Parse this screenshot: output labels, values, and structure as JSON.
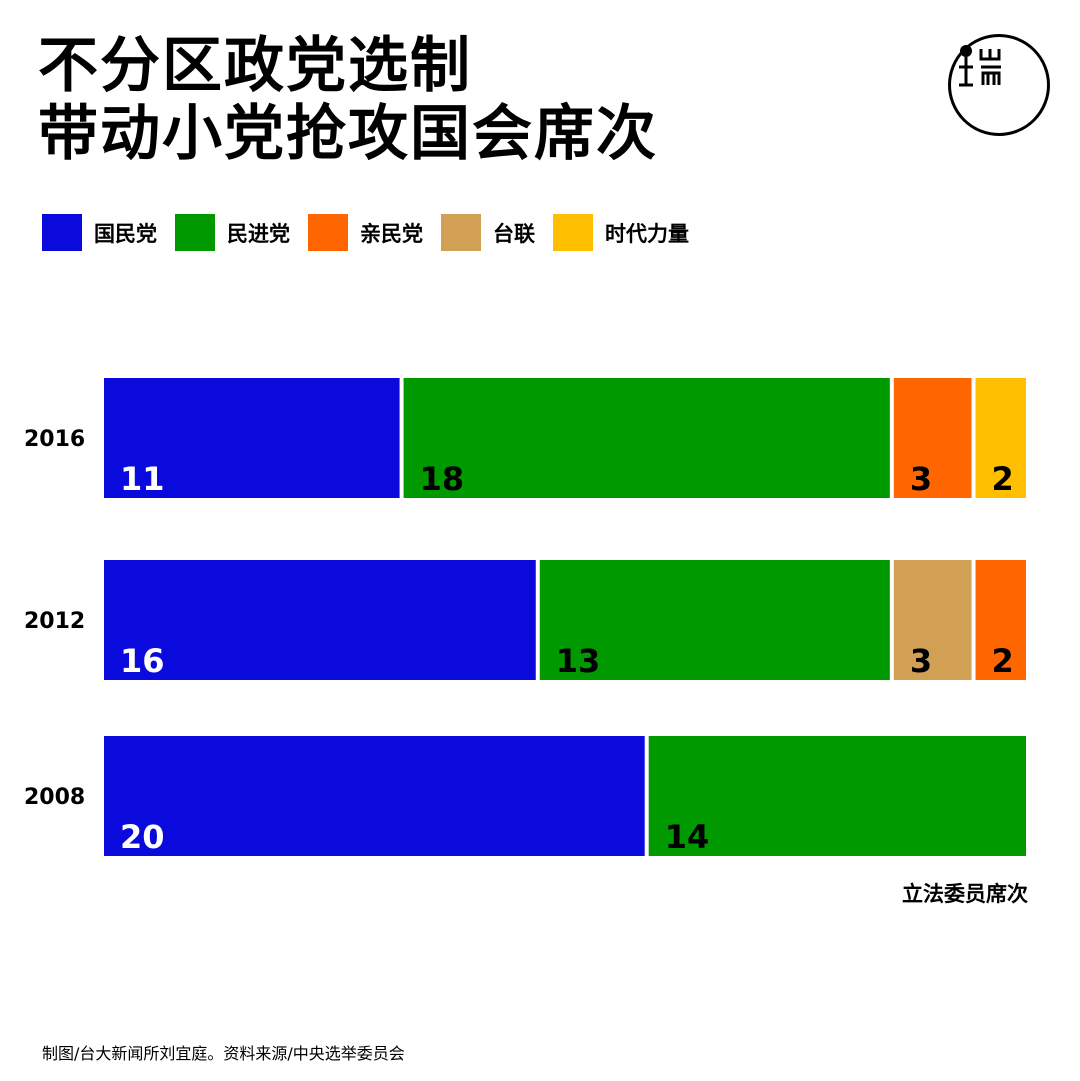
{
  "title": {
    "line1": "不分区政党选制",
    "line2": "带动小党抢攻国会席次"
  },
  "logo_icon": "initium-logo-icon",
  "chart_data": {
    "type": "bar",
    "orientation": "horizontal",
    "stacked": true,
    "xlabel": "立法委员席次",
    "categories": [
      "2016",
      "2012",
      "2008"
    ],
    "parties": [
      {
        "name": "国民党",
        "color": "#0a0adc"
      },
      {
        "name": "民进党",
        "color": "#009900"
      },
      {
        "name": "亲民党",
        "color": "#ff6600"
      },
      {
        "name": "台联",
        "color": "#d2a054"
      },
      {
        "name": "时代力量",
        "color": "#ffbf00"
      }
    ],
    "rows": [
      {
        "year": "2016",
        "segments": [
          {
            "party": "国民党",
            "value": 11
          },
          {
            "party": "民进党",
            "value": 18
          },
          {
            "party": "亲民党",
            "value": 3
          },
          {
            "party": "时代力量",
            "value": 2
          }
        ]
      },
      {
        "year": "2012",
        "segments": [
          {
            "party": "国民党",
            "value": 16
          },
          {
            "party": "民进党",
            "value": 13
          },
          {
            "party": "台联",
            "value": 3
          },
          {
            "party": "亲民党",
            "value": 2
          }
        ]
      },
      {
        "year": "2008",
        "segments": [
          {
            "party": "国民党",
            "value": 20
          },
          {
            "party": "民进党",
            "value": 14
          }
        ]
      }
    ],
    "grid": false,
    "legend_position": "top-left"
  },
  "source": "制图/台大新闻所刘宜庭。资料来源/中央选举委员会"
}
